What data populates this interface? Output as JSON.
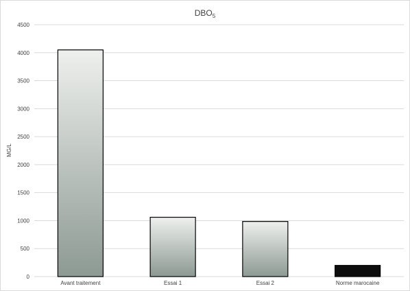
{
  "chart_data": {
    "type": "bar",
    "title": "DBO",
    "title_subscript": "5",
    "ylabel": "MG/L",
    "xlabel": "",
    "categories": [
      "Avant traitement",
      "Essai 1",
      "Essai 2",
      "Norme marocaine"
    ],
    "values": [
      4050,
      1060,
      985,
      200
    ],
    "ylim": [
      0,
      4500
    ],
    "yticks": [
      0,
      500,
      1000,
      1500,
      2000,
      2500,
      3000,
      3500,
      4000,
      4500
    ],
    "grid": true,
    "legend": "none",
    "colors": {
      "bar_gradient_top": "#eef0ee",
      "bar_gradient_bottom": "#8d9993",
      "norme_bar": "#0d0d0d",
      "bar_outline": "#000000",
      "gridline": "#d9d9d9"
    }
  }
}
